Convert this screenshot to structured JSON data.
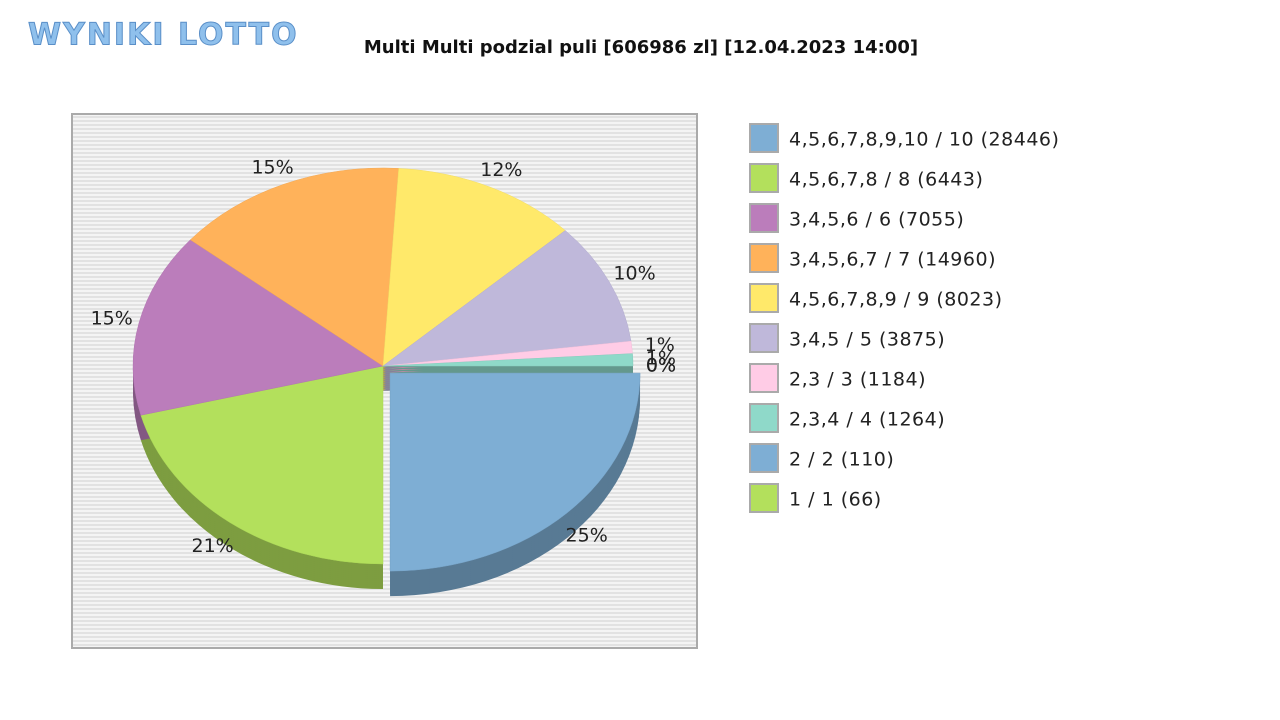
{
  "logo": "WYNIKI LOTTO",
  "chart_data": {
    "type": "pie",
    "title": "Multi Multi podzial puli [606986 zl] [12.04.2023 14:00]",
    "categories": [
      "4,5,6,7,8,9,10 / 10 (28446)",
      "4,5,6,7,8 / 8 (6443)",
      "3,4,5,6 / 6 (7055)",
      "3,4,5,6,7 / 7 (14960)",
      "4,5,6,7,8,9 / 9 (8023)",
      "3,4,5 / 5 (3875)",
      "2,3 / 3 (1184)",
      "2,3,4 / 4 (1264)",
      "2 / 2 (110)",
      "1 / 1 (66)"
    ],
    "values": [
      25,
      21,
      15,
      15,
      12,
      10,
      1,
      1,
      0,
      0
    ],
    "value_labels": [
      "25%",
      "21%",
      "15%",
      "15%",
      "12%",
      "10%",
      "1%",
      "1%",
      "0%",
      "0%"
    ],
    "colors": [
      "#7eaed4",
      "#b3e05c",
      "#bb7dbb",
      "#ffb25a",
      "#ffe96a",
      "#bfb8da",
      "#ffcce6",
      "#8fd9c9",
      "#7eaed4",
      "#b3e05c"
    ]
  }
}
